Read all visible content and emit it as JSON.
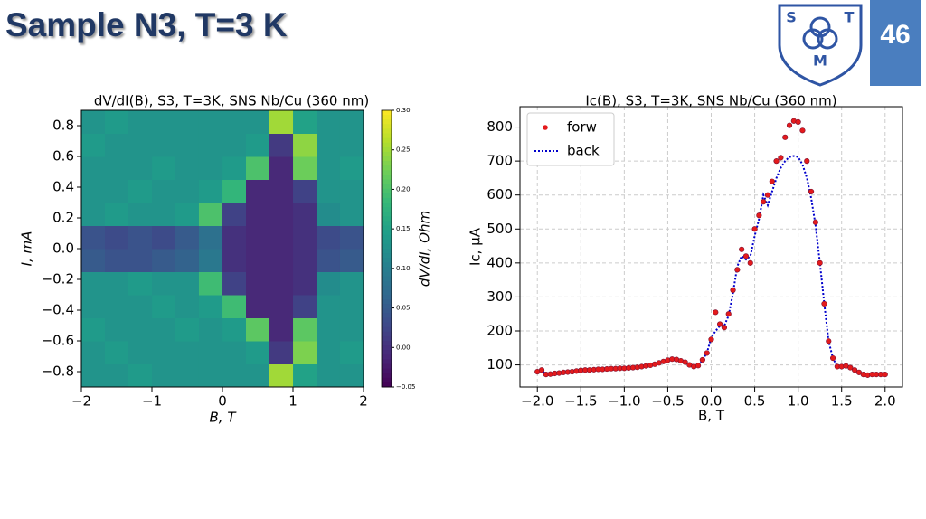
{
  "slide": {
    "title": "Sample N3, T=3 K",
    "page_number": "46",
    "logo": [
      "S",
      "T",
      "M"
    ]
  },
  "chart_data": [
    {
      "type": "heatmap",
      "title": "dV/dI(B), S3, T=3K, SNS Nb/Cu (360 nm)",
      "xlabel": "B, T",
      "ylabel": "I, mA",
      "colorbar_label": "dV/dI, Ohm",
      "colormap": "viridis",
      "x": [
        -1.833,
        -1.5,
        -1.167,
        -0.833,
        -0.5,
        -0.167,
        0.167,
        0.5,
        0.833,
        1.167,
        1.5,
        1.833
      ],
      "y": [
        -0.825,
        -0.675,
        -0.525,
        -0.375,
        -0.225,
        -0.075,
        0.075,
        0.225,
        0.375,
        0.525,
        0.675,
        0.825
      ],
      "z": [
        [
          0.13,
          0.13,
          0.14,
          0.13,
          0.13,
          0.13,
          0.13,
          0.13,
          0.25,
          0.15,
          0.13,
          0.13
        ],
        [
          0.13,
          0.14,
          0.13,
          0.13,
          0.13,
          0.13,
          0.13,
          0.14,
          0.01,
          0.23,
          0.13,
          0.14
        ],
        [
          0.14,
          0.13,
          0.13,
          0.13,
          0.14,
          0.13,
          0.14,
          0.21,
          -0.01,
          0.21,
          0.13,
          0.13
        ],
        [
          0.13,
          0.13,
          0.13,
          0.14,
          0.13,
          0.14,
          0.19,
          -0.01,
          -0.01,
          0.02,
          0.13,
          0.13
        ],
        [
          0.13,
          0.13,
          0.14,
          0.13,
          0.13,
          0.19,
          0.02,
          -0.01,
          -0.01,
          0.0,
          0.12,
          0.13
        ],
        [
          0.05,
          0.04,
          0.04,
          0.05,
          0.06,
          0.09,
          0.0,
          -0.01,
          -0.01,
          0.0,
          0.04,
          0.05
        ],
        [
          0.04,
          0.03,
          0.04,
          0.03,
          0.05,
          0.08,
          0.0,
          -0.01,
          -0.01,
          0.0,
          0.03,
          0.04
        ],
        [
          0.13,
          0.14,
          0.13,
          0.13,
          0.14,
          0.2,
          0.02,
          -0.01,
          -0.01,
          0.0,
          0.12,
          0.13
        ],
        [
          0.13,
          0.13,
          0.14,
          0.13,
          0.13,
          0.14,
          0.18,
          -0.01,
          -0.01,
          0.02,
          0.13,
          0.13
        ],
        [
          0.13,
          0.13,
          0.13,
          0.14,
          0.13,
          0.13,
          0.14,
          0.2,
          -0.01,
          0.22,
          0.13,
          0.14
        ],
        [
          0.14,
          0.13,
          0.13,
          0.13,
          0.13,
          0.13,
          0.13,
          0.14,
          0.01,
          0.24,
          0.13,
          0.13
        ],
        [
          0.13,
          0.14,
          0.13,
          0.13,
          0.13,
          0.13,
          0.13,
          0.13,
          0.25,
          0.15,
          0.13,
          0.13
        ]
      ],
      "xlim": [
        -2,
        2
      ],
      "ylim": [
        -0.9,
        0.9
      ],
      "clim": [
        -0.05,
        0.3
      ],
      "xticks": [
        {
          "value": -2,
          "label": "−2"
        },
        {
          "value": -1,
          "label": "−1"
        },
        0,
        1,
        2
      ],
      "yticks": [
        {
          "value": -0.8,
          "label": "−0.8"
        },
        {
          "value": -0.6,
          "label": "−0.6"
        },
        {
          "value": -0.4,
          "label": "−0.4"
        },
        {
          "value": -0.2,
          "label": "−0.2"
        },
        {
          "value": 0,
          "label": "0.0"
        },
        0.2,
        0.4,
        0.6,
        0.8
      ],
      "cticks": [
        {
          "value": -0.05,
          "label": "−0.05"
        },
        {
          "value": 0,
          "label": "0.00"
        },
        0.05,
        {
          "value": 0.1,
          "label": "0.10"
        },
        0.15,
        {
          "value": 0.2,
          "label": "0.20"
        },
        0.25,
        {
          "value": 0.3,
          "label": "0.30"
        }
      ]
    },
    {
      "type": "line",
      "title": "Ic(B), S3, T=3K, SNS Nb/Cu (360 nm)",
      "xlabel": "B, T",
      "ylabel": "Ic, μA",
      "grid": true,
      "legend": "upper left",
      "x": [
        -2.0,
        -1.95,
        -1.9,
        -1.85,
        -1.8,
        -1.75,
        -1.7,
        -1.65,
        -1.6,
        -1.55,
        -1.5,
        -1.45,
        -1.4,
        -1.35,
        -1.3,
        -1.25,
        -1.2,
        -1.15,
        -1.1,
        -1.05,
        -1.0,
        -0.95,
        -0.9,
        -0.85,
        -0.8,
        -0.75,
        -0.7,
        -0.65,
        -0.6,
        -0.55,
        -0.5,
        -0.45,
        -0.4,
        -0.35,
        -0.3,
        -0.25,
        -0.2,
        -0.15,
        -0.1,
        -0.05,
        0.0,
        0.05,
        0.1,
        0.15,
        0.2,
        0.25,
        0.3,
        0.35,
        0.4,
        0.45,
        0.5,
        0.55,
        0.6,
        0.65,
        0.7,
        0.75,
        0.8,
        0.85,
        0.9,
        0.95,
        1.0,
        1.05,
        1.1,
        1.15,
        1.2,
        1.25,
        1.3,
        1.35,
        1.4,
        1.45,
        1.5,
        1.55,
        1.6,
        1.65,
        1.7,
        1.75,
        1.8,
        1.85,
        1.9,
        1.95,
        2.0
      ],
      "series": [
        {
          "name": "forw",
          "color": "#e41a1c",
          "style": "dots",
          "values": [
            80,
            85,
            72,
            73,
            75,
            76,
            78,
            79,
            80,
            82,
            84,
            85,
            85,
            86,
            87,
            87,
            88,
            89,
            89,
            90,
            90,
            91,
            92,
            93,
            95,
            97,
            99,
            102,
            106,
            110,
            114,
            117,
            116,
            112,
            108,
            100,
            95,
            98,
            115,
            135,
            175,
            255,
            220,
            210,
            250,
            320,
            380,
            440,
            420,
            400,
            500,
            540,
            580,
            600,
            640,
            700,
            710,
            770,
            805,
            818,
            815,
            790,
            700,
            610,
            520,
            400,
            280,
            170,
            120,
            95,
            95,
            97,
            92,
            85,
            78,
            72,
            70,
            72,
            72,
            72,
            72
          ]
        },
        {
          "name": "back",
          "color": "#0000cc",
          "style": "dotted",
          "values": [
            80,
            85,
            72,
            73,
            75,
            76,
            78,
            79,
            80,
            82,
            84,
            85,
            85,
            86,
            87,
            87,
            88,
            89,
            89,
            90,
            90,
            91,
            92,
            93,
            95,
            97,
            99,
            102,
            106,
            110,
            114,
            117,
            116,
            112,
            108,
            100,
            95,
            98,
            115,
            135,
            180,
            200,
            215,
            215,
            245,
            310,
            390,
            420,
            410,
            420,
            480,
            530,
            600,
            570,
            610,
            650,
            680,
            700,
            712,
            715,
            712,
            690,
            650,
            590,
            510,
            400,
            280,
            170,
            120,
            95,
            95,
            97,
            92,
            85,
            78,
            72,
            70,
            72,
            72,
            72,
            72
          ]
        }
      ],
      "xlim": [
        -2.2,
        2.2
      ],
      "ylim": [
        35,
        860
      ],
      "xticks": [
        {
          "value": -2,
          "label": "−2.0"
        },
        {
          "value": -1.5,
          "label": "−1.5"
        },
        {
          "value": -1,
          "label": "−1.0"
        },
        {
          "value": -0.5,
          "label": "−0.5"
        },
        {
          "value": 0,
          "label": "0.0"
        },
        0.5,
        {
          "value": 1,
          "label": "1.0"
        },
        1.5,
        {
          "value": 2,
          "label": "2.0"
        }
      ],
      "yticks": [
        100,
        200,
        300,
        400,
        500,
        600,
        700,
        800
      ]
    }
  ]
}
